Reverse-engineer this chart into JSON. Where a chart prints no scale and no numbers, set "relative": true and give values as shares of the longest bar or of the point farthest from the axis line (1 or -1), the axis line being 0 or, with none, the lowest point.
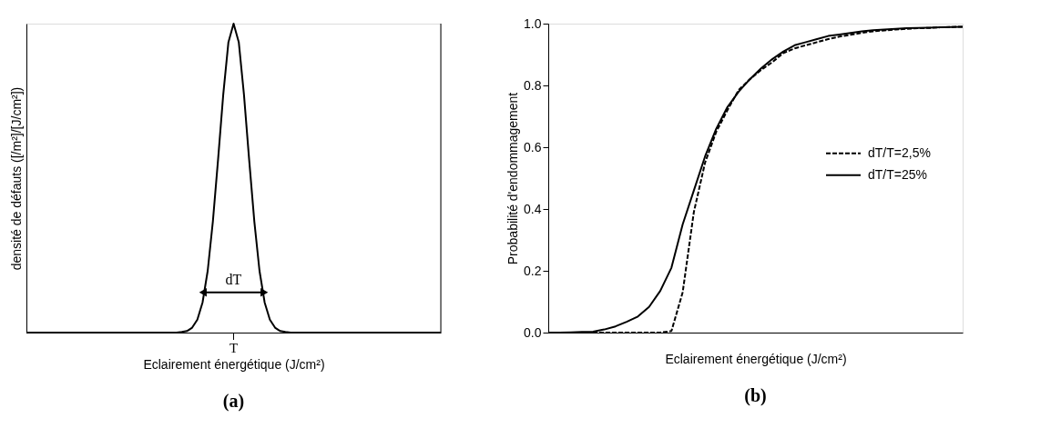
{
  "chart_data": [
    {
      "type": "line",
      "xlabel": "Eclairement énergétique (J/cm²)",
      "ylabel": "densité de défauts ([/m²]/[J/cm²])",
      "relative": true,
      "categories": [
        null,
        null,
        null,
        null,
        null,
        null,
        null,
        null,
        null,
        null,
        null,
        null,
        null,
        null,
        null,
        null,
        null,
        null,
        null,
        null,
        null,
        null,
        null,
        null,
        null,
        null,
        null,
        null,
        null,
        null,
        null,
        null,
        null,
        null,
        null,
        null,
        null,
        null,
        null,
        null,
        null,
        null,
        null,
        null,
        null,
        null,
        null,
        null,
        null,
        null,
        null,
        null,
        null,
        null,
        null,
        null,
        null,
        null,
        null,
        null,
        null,
        null,
        null,
        null,
        null,
        null,
        null,
        null,
        null,
        null,
        null,
        null,
        null,
        null,
        null,
        null,
        null,
        null,
        null,
        null,
        null
      ],
      "series": [
        {
          "color": "#000000",
          "values": [
            0,
            0,
            0,
            0,
            0,
            0,
            0,
            0,
            0,
            0,
            0,
            0,
            0,
            0,
            0,
            0,
            0,
            0,
            0,
            0,
            0,
            0,
            0,
            0,
            0,
            0,
            0,
            0,
            0,
            0,
            0.002,
            0.005,
            0.016,
            0.042,
            0.097,
            0.2,
            0.36,
            0.56,
            0.77,
            0.94,
            1,
            0.94,
            0.77,
            0.56,
            0.36,
            0.2,
            0.097,
            0.042,
            0.016,
            0.005,
            0.002,
            0,
            0,
            0,
            0,
            0,
            0,
            0,
            0,
            0,
            0,
            0,
            0,
            0,
            0,
            0,
            0,
            0,
            0,
            0,
            0,
            0,
            0,
            0,
            0,
            0,
            0,
            0,
            0,
            0,
            0
          ]
        }
      ],
      "annotations": [
        "T",
        "dT",
        "(a)"
      ],
      "grid": false,
      "marker": "none"
    },
    {
      "type": "line",
      "xlabel": "Eclairement énergétique (J/cm²)",
      "ylabel": "Probabilité d'endommagement",
      "ylim": [
        0,
        1
      ],
      "yticks": [
        {
          "value": 0,
          "label": "0.0"
        },
        {
          "value": 0.2,
          "label": "0.2"
        },
        {
          "value": 0.4,
          "label": "0.4"
        },
        {
          "value": 0.6,
          "label": "0.6"
        },
        {
          "value": 0.8,
          "label": "0.8"
        },
        {
          "value": 1,
          "label": "1.0"
        }
      ],
      "categories": [
        null,
        null,
        null,
        null,
        null,
        null,
        null,
        null,
        null,
        null,
        null,
        null,
        null,
        null,
        null,
        null,
        null,
        null,
        null,
        null,
        null,
        null,
        null,
        null,
        null,
        null,
        null,
        null,
        null,
        null,
        null,
        null,
        null,
        null,
        null,
        null,
        null,
        null
      ],
      "series": [
        {
          "name": "dT/T=2,5%",
          "color": "#000000",
          "line_style": "dashed",
          "values": [
            0,
            0,
            0,
            0,
            0,
            0,
            0,
            0,
            0,
            0,
            0,
            0.005,
            0.13,
            0.39,
            0.55,
            0.65,
            0.72,
            0.785,
            0.82,
            0.85,
            0.875,
            0.905,
            0.92,
            0.93,
            0.94,
            0.95,
            0.958,
            0.964,
            0.97,
            0.975,
            0.978,
            0.981,
            0.983,
            0.985,
            0.986,
            0.988,
            0.989,
            0.99
          ]
        },
        {
          "name": "dT/T=25%",
          "color": "#000000",
          "line_style": "solid",
          "values": [
            0,
            0,
            0.001,
            0.002,
            0.003,
            0.01,
            0.02,
            0.035,
            0.052,
            0.083,
            0.135,
            0.21,
            0.35,
            0.46,
            0.57,
            0.66,
            0.73,
            0.78,
            0.82,
            0.855,
            0.885,
            0.91,
            0.93,
            0.94,
            0.95,
            0.96,
            0.965,
            0.97,
            0.975,
            0.979,
            0.981,
            0.983,
            0.985,
            0.986,
            0.987,
            0.988,
            0.989,
            0.99
          ]
        }
      ],
      "annotations": [
        "(b)"
      ],
      "grid": false,
      "legend": "right",
      "marker": "none"
    }
  ]
}
